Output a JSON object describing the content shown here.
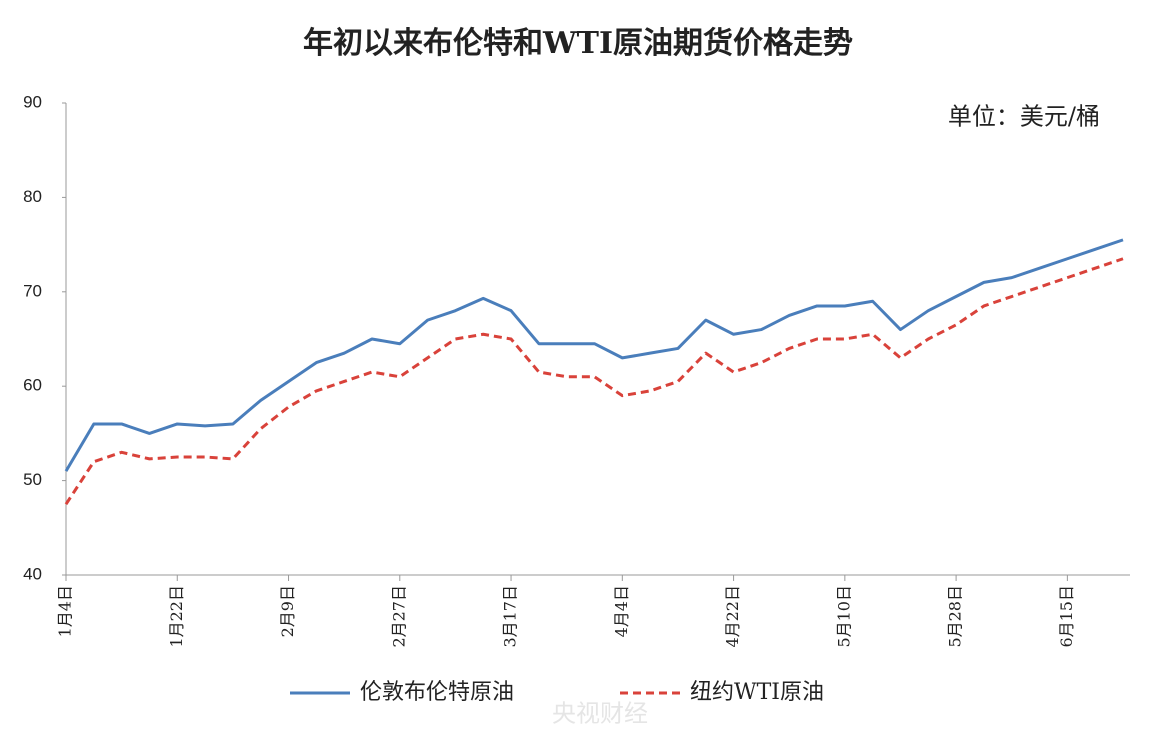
{
  "chart_data": {
    "type": "line",
    "title": "年初以来布伦特和WTI原油期货价格走势",
    "unit_note": "单位：美元/桶",
    "watermark": "央视财经",
    "categories": [
      "1月4日",
      null,
      null,
      null,
      "1月22日",
      null,
      null,
      null,
      "2月9日",
      null,
      null,
      null,
      "2月27日",
      null,
      null,
      null,
      "3月17日",
      null,
      null,
      null,
      "4月4日",
      null,
      null,
      null,
      "4月22日",
      null,
      null,
      null,
      "5月10日",
      null,
      null,
      null,
      "5月28日",
      null,
      null,
      null,
      "6月15日",
      null,
      null
    ],
    "series": [
      {
        "name": "伦敦布伦特原油",
        "color": "#4a7ebb",
        "dash": false,
        "values": [
          51,
          56,
          56,
          55,
          56,
          55.8,
          56,
          58.5,
          60.5,
          62.5,
          63.5,
          65,
          64.5,
          67,
          68,
          69.3,
          68,
          64.5,
          64.5,
          64.5,
          63,
          63.5,
          64,
          67,
          65.5,
          66,
          67.5,
          68.5,
          68.5,
          69,
          66,
          68,
          69.5,
          71,
          71.5,
          72.5,
          73.5,
          74.5,
          75.5
        ]
      },
      {
        "name": "纽约WTI原油",
        "color": "#d9423a",
        "dash": true,
        "values": [
          47.5,
          52,
          53,
          52.3,
          52.5,
          52.5,
          52.3,
          55.5,
          57.8,
          59.5,
          60.5,
          61.5,
          61,
          63,
          65,
          65.5,
          65,
          61.5,
          61,
          61,
          59,
          59.5,
          60.5,
          63.5,
          61.5,
          62.5,
          64,
          65,
          65,
          65.5,
          63,
          65,
          66.5,
          68.5,
          69.5,
          70.5,
          71.5,
          72.5,
          73.5
        ]
      }
    ],
    "ylim": [
      40,
      90
    ],
    "yticks": [
      40,
      50,
      60,
      70,
      80,
      90
    ],
    "grid": false
  }
}
